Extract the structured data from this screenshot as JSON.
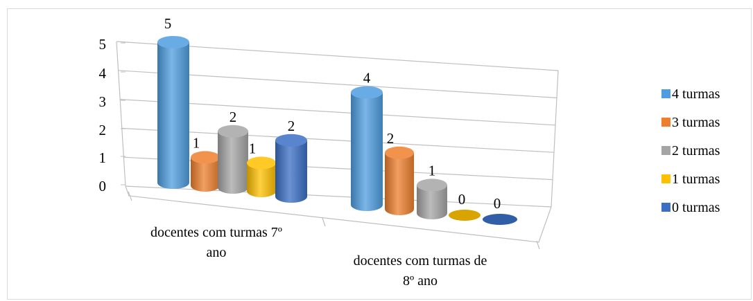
{
  "chart_data": {
    "type": "bar",
    "title": "",
    "xlabel": "",
    "ylabel": "",
    "ylim": [
      0,
      5
    ],
    "yticks": [
      0,
      1,
      2,
      3,
      4,
      5
    ],
    "grid": true,
    "legend_position": "right",
    "categories": [
      [
        "docentes com turmas 7º",
        "ano"
      ],
      [
        "docentes com turmas de",
        "8º ano"
      ]
    ],
    "series": [
      {
        "name": "4 turmas",
        "color": "#4f9de0",
        "values": [
          5,
          4
        ]
      },
      {
        "name": "3 turmas",
        "color": "#ee7f2d",
        "values": [
          1,
          2
        ]
      },
      {
        "name": "2 turmas",
        "color": "#a5a5a5",
        "values": [
          2,
          1
        ]
      },
      {
        "name": "1 turmas",
        "color": "#ffc000",
        "values": [
          1,
          0
        ]
      },
      {
        "name": "0 turmas",
        "color": "#3a6fc4",
        "values": [
          2,
          0
        ]
      }
    ]
  }
}
